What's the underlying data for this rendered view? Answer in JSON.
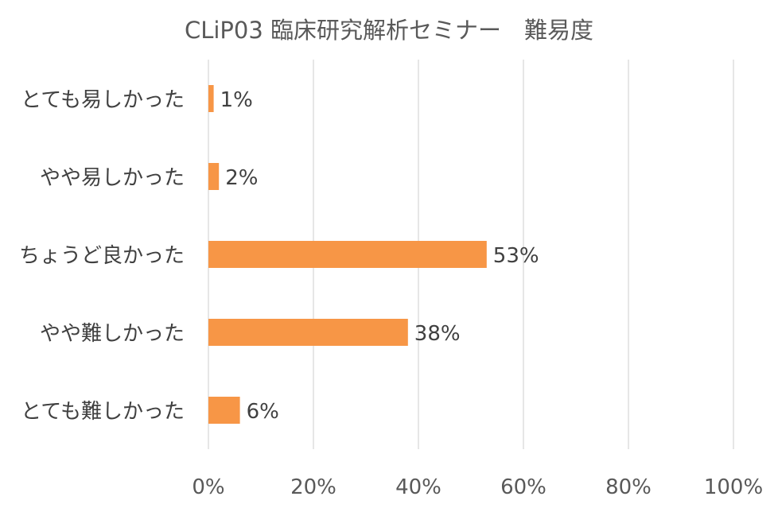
{
  "chart_data": {
    "type": "bar",
    "orientation": "horizontal",
    "title": "CLiP03 臨床研究解析セミナー　難易度",
    "categories": [
      "とても易しかった",
      "やや易しかった",
      "ちょうど良かった",
      "やや難しかった",
      "とても難しかった"
    ],
    "values": [
      1,
      2,
      53,
      38,
      6
    ],
    "data_labels": [
      "1%",
      "2%",
      "53%",
      "38%",
      "6%"
    ],
    "xlim": [
      0,
      100
    ],
    "xticks": [
      0,
      20,
      40,
      60,
      80,
      100
    ],
    "xtick_labels": [
      "0%",
      "20%",
      "40%",
      "60%",
      "80%",
      "100%"
    ],
    "xlabel": "",
    "ylabel": "",
    "grid": true,
    "legend": "none",
    "bar_color": "#F79646"
  }
}
